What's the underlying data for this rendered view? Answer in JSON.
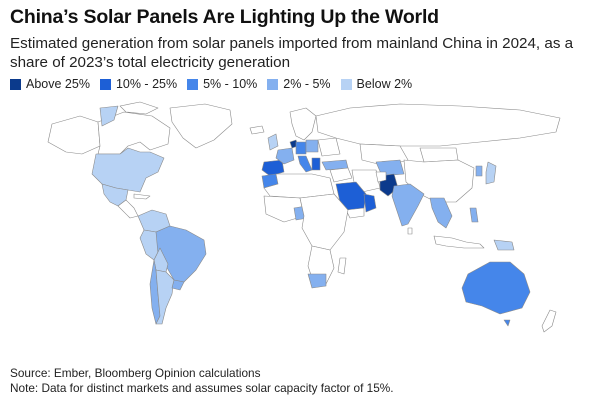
{
  "title": "China’s Solar Panels Are Lighting Up the World",
  "subtitle": "Estimated generation from solar panels imported from mainland China in 2024, as a share of 2023’s total electricity generation",
  "legend": [
    {
      "label": "Above 25%",
      "color": "#0b3a8c"
    },
    {
      "label": "10% - 25%",
      "color": "#1d5fd6"
    },
    {
      "label": "5% - 10%",
      "color": "#4586ea"
    },
    {
      "label": "2% - 5%",
      "color": "#84b0ef"
    },
    {
      "label": "Below 2%",
      "color": "#b7d2f4"
    }
  ],
  "colors": {
    "no_data": "#ffffff",
    "border": "#8a8a8a"
  },
  "footer": {
    "source": "Source: Ember, Bloomberg Opinion calculations",
    "note": "Note: Data for distinct markets and assumes solar capacity factor of 15%."
  }
}
